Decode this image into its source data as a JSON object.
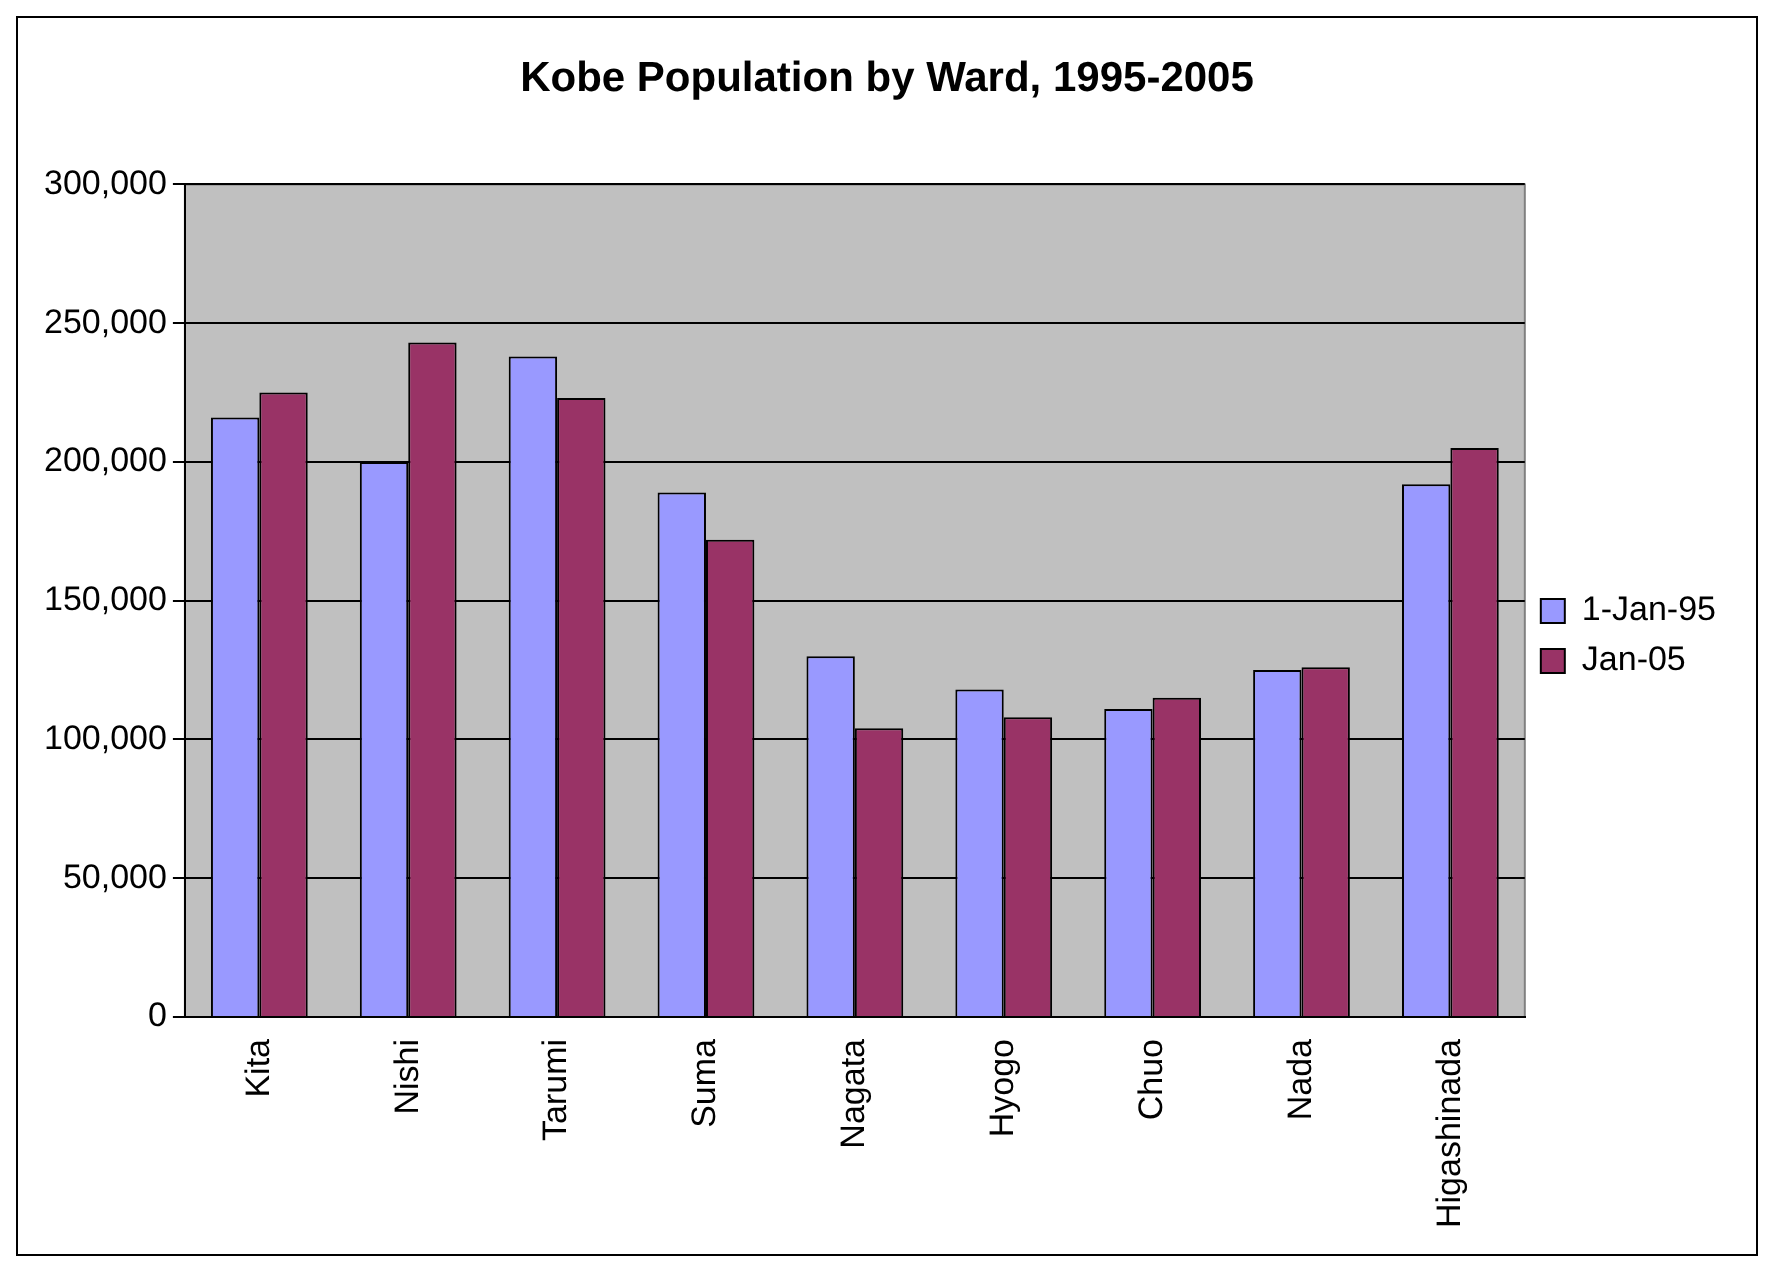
{
  "chart_data": {
    "type": "bar",
    "title": "Kobe Population by Ward, 1995-2005",
    "categories": [
      "Kita",
      "Nishi",
      "Tarumi",
      "Suma",
      "Nagata",
      "Hyogo",
      "Chuo",
      "Nada",
      "Higashinada"
    ],
    "series": [
      {
        "name": "1-Jan-95",
        "color": "#9999ff",
        "values": [
          216000,
          200000,
          238000,
          189000,
          130000,
          118000,
          111000,
          125000,
          192000
        ]
      },
      {
        "name": "Jan-05",
        "color": "#993366",
        "values": [
          225000,
          243000,
          223000,
          172000,
          104000,
          108000,
          115000,
          126000,
          205000
        ]
      }
    ],
    "ylim": [
      0,
      300000
    ],
    "yticks": [
      0,
      {
        "value": 50000,
        "label": "50,000"
      },
      {
        "value": 100000,
        "label": "100,000"
      },
      {
        "value": 150000,
        "label": "150,000"
      },
      {
        "value": 200000,
        "label": "200,000"
      },
      {
        "value": 250000,
        "label": "250,000"
      },
      {
        "value": 300000,
        "label": "300,000"
      }
    ],
    "grid": "y",
    "legend": "right"
  }
}
